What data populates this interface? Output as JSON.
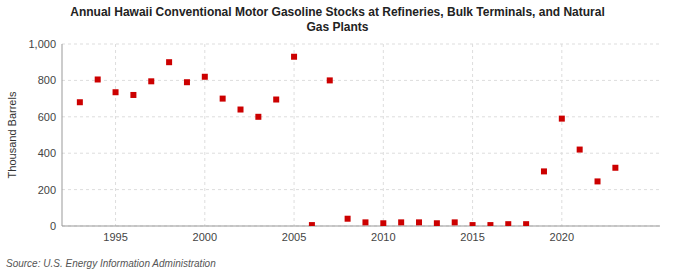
{
  "chart_data": {
    "type": "scatter",
    "title": "Annual Hawaii Conventional Motor Gasoline Stocks at Refineries, Bulk Terminals, and Natural\nGas Plants",
    "y_label": "Thousand Barrels",
    "source": "Source: U.S. Energy Information Administration",
    "x": [
      1993,
      1994,
      1995,
      1996,
      1997,
      1998,
      1999,
      2000,
      2001,
      2002,
      2003,
      2004,
      2005,
      2006,
      2007,
      2008,
      2009,
      2010,
      2011,
      2012,
      2013,
      2014,
      2015,
      2016,
      2017,
      2018,
      2019,
      2020,
      2021,
      2022,
      2023
    ],
    "values": [
      680,
      805,
      735,
      720,
      795,
      900,
      790,
      820,
      700,
      640,
      600,
      695,
      930,
      5,
      800,
      40,
      20,
      15,
      20,
      20,
      15,
      20,
      5,
      5,
      10,
      10,
      300,
      590,
      420,
      245,
      320
    ],
    "color": "#cc0000",
    "marker": "square",
    "xlim": [
      1992,
      2025.5
    ],
    "xticks": [
      1995,
      2000,
      2005,
      2010,
      2015,
      2020
    ],
    "ylim": [
      0,
      1000
    ],
    "yticks": [
      0,
      200,
      400,
      600,
      800,
      {
        "value": 1000,
        "label": "1,000"
      }
    ],
    "grid": true
  }
}
